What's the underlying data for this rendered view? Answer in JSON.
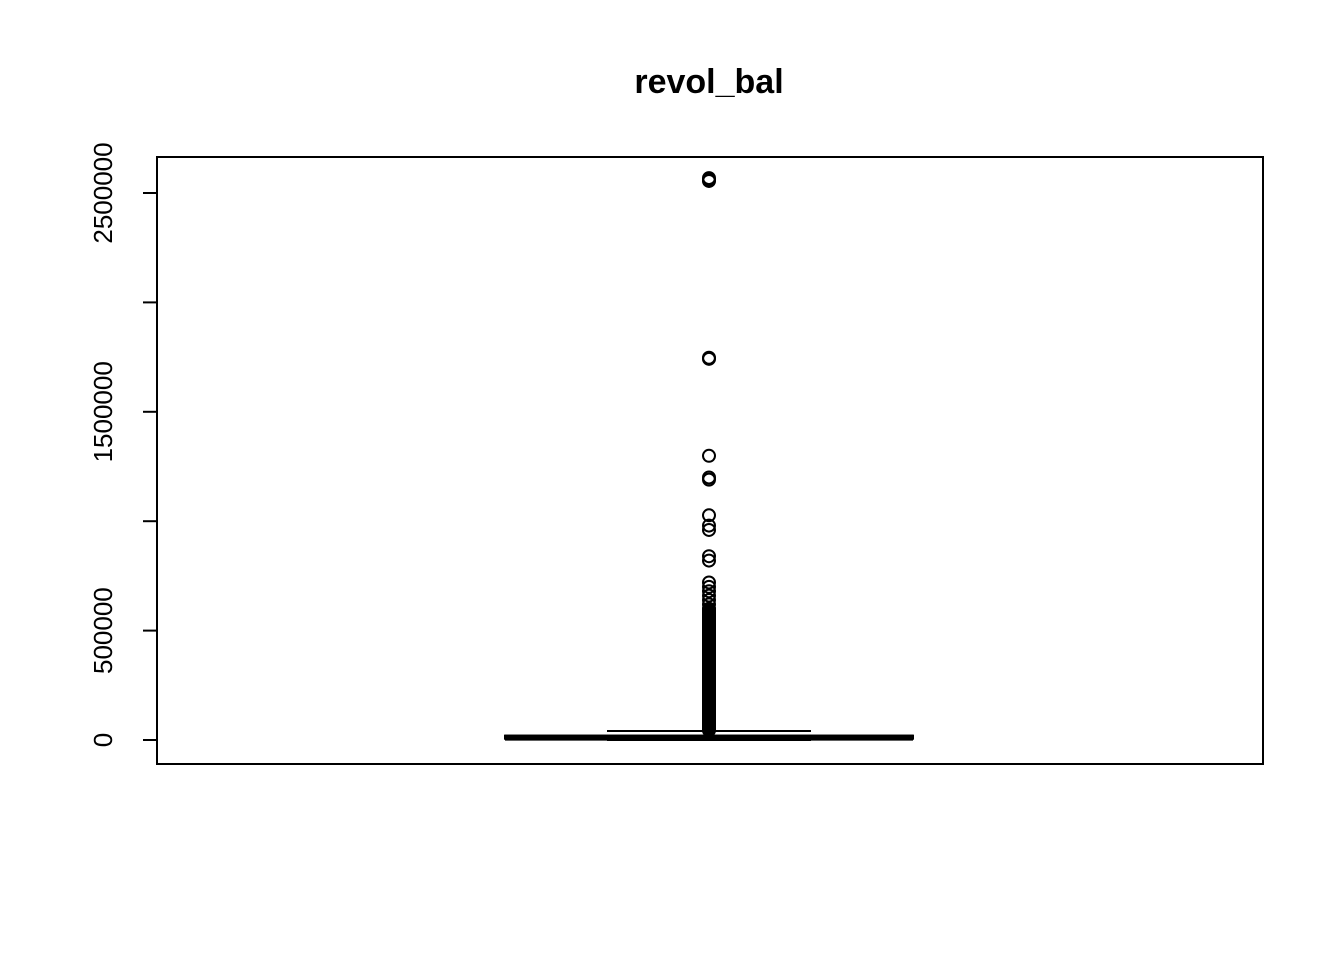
{
  "chart_data": {
    "type": "boxplot",
    "title": "revol_bal",
    "xlabel": "",
    "ylabel": "",
    "ylim": [
      -100000,
      2670000
    ],
    "yticks": [
      {
        "value": 0,
        "label": "0"
      },
      {
        "value": 500000,
        "label": "500000"
      },
      {
        "value": 1000000,
        "label": ""
      },
      {
        "value": 1500000,
        "label": "1500000"
      },
      {
        "value": 2000000,
        "label": ""
      },
      {
        "value": 2500000,
        "label": "2500000"
      }
    ],
    "box": {
      "q1": 5900,
      "median": 11000,
      "q3": 20000,
      "whisker_low": 0,
      "whisker_high": 41000
    },
    "outliers": [
      2568000,
      2560000,
      2555000,
      1747000,
      1742000,
      1299000,
      1200000,
      1190000,
      1027000,
      980000,
      960000,
      840000,
      820000,
      720000,
      700000,
      680000,
      660000,
      640000,
      620000,
      600000,
      580000,
      560000,
      540000,
      520000,
      500000,
      480000,
      460000,
      440000,
      420000,
      400000,
      380000,
      360000,
      340000,
      320000,
      300000,
      280000,
      260000,
      240000,
      220000,
      200000,
      180000,
      160000,
      140000,
      120000,
      100000,
      80000,
      60000,
      45000
    ],
    "grid": false,
    "legend": false
  }
}
